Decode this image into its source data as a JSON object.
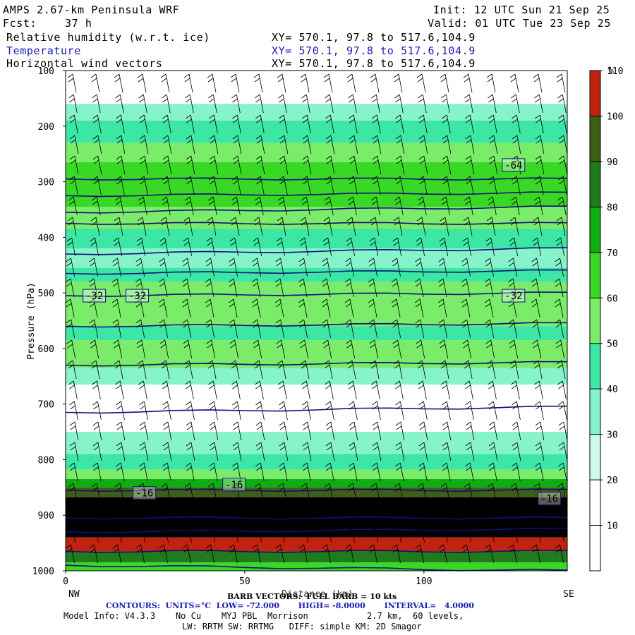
{
  "header": {
    "title": "AMPS 2.67-km Peninsula WRF",
    "init": "Init: 12 UTC Sun 21 Sep 25",
    "fcst_label": "Fcst:",
    "fcst_value": "37 h",
    "valid": "Valid: 01 UTC Tue 23 Sep 25",
    "fields": [
      {
        "name": "Relative humidity (w.r.t. ice)",
        "xy": "XY= 570.1, 97.8 to 517.6,104.9"
      },
      {
        "name": "Temperature",
        "xy": "XY= 570.1, 97.8 to 517.6,104.9"
      },
      {
        "name": "Horizontal wind vectors",
        "xy": "XY= 570.1, 97.8 to 517.6,104.9"
      }
    ]
  },
  "colors": {
    "rh_bands": [
      "#ffffff",
      "#ffffff",
      "#ccfce8",
      "#86f3cb",
      "#3ce6a4",
      "#7beb6a",
      "#38d825",
      "#0eae13",
      "#1f7b1c",
      "#3e5e17",
      "#c0230f"
    ],
    "temp_contour": "#101080",
    "barb": "#000000",
    "header_blue": "#1b1bb3"
  },
  "chart_data": {
    "type": "heatmap",
    "ylabel": "Pressure (hPa)",
    "xlabel": "Distance (km)",
    "x_ticks": [
      0,
      50,
      100
    ],
    "x_range": [
      0,
      140
    ],
    "y_ticks": [
      100,
      200,
      300,
      400,
      500,
      600,
      700,
      800,
      900,
      1000
    ],
    "y_range": [
      100,
      1000
    ],
    "left_end": "NW",
    "right_end": "SE",
    "colorbar": {
      "unit": "%",
      "levels": [
        10,
        20,
        30,
        40,
        50,
        60,
        70,
        80,
        90,
        100,
        110
      ]
    },
    "rh_layers": [
      {
        "p_top": 100,
        "p_bot": 160,
        "rh_pct": 0
      },
      {
        "p_top": 160,
        "p_bot": 190,
        "rh_pct": 35
      },
      {
        "p_top": 190,
        "p_bot": 230,
        "rh_pct": 45
      },
      {
        "p_top": 230,
        "p_bot": 265,
        "rh_pct": 55
      },
      {
        "p_top": 265,
        "p_bot": 345,
        "rh_pct": 65
      },
      {
        "p_top": 345,
        "p_bot": 385,
        "rh_pct": 55
      },
      {
        "p_top": 385,
        "p_bot": 420,
        "rh_pct": 45
      },
      {
        "p_top": 420,
        "p_bot": 455,
        "rh_pct": 35
      },
      {
        "p_top": 455,
        "p_bot": 480,
        "rh_pct": 45
      },
      {
        "p_top": 480,
        "p_bot": 560,
        "rh_pct": 55
      },
      {
        "p_top": 560,
        "p_bot": 585,
        "rh_pct": 45
      },
      {
        "p_top": 585,
        "p_bot": 635,
        "rh_pct": 55
      },
      {
        "p_top": 635,
        "p_bot": 665,
        "rh_pct": 35
      },
      {
        "p_top": 665,
        "p_bot": 750,
        "rh_pct": 0
      },
      {
        "p_top": 750,
        "p_bot": 790,
        "rh_pct": 35
      },
      {
        "p_top": 790,
        "p_bot": 818,
        "rh_pct": 45
      },
      {
        "p_top": 818,
        "p_bot": 835,
        "rh_pct": 55
      },
      {
        "p_top": 835,
        "p_bot": 850,
        "rh_pct": 75
      },
      {
        "p_top": 850,
        "p_bot": 868,
        "rh_pct": 95
      },
      {
        "p_top": 868,
        "p_bot": 940,
        "rh_pct": 110
      },
      {
        "p_top": 940,
        "p_bot": 965,
        "rh_pct": 105
      },
      {
        "p_top": 965,
        "p_bot": 985,
        "rh_pct": 85
      },
      {
        "p_top": 985,
        "p_bot": 1000,
        "rh_pct": 65
      }
    ],
    "temperature_contours": [
      {
        "p_left": 295,
        "p_right": 295
      },
      {
        "p_left": 325,
        "p_right": 320
      },
      {
        "p_left": 355,
        "p_right": 345
      },
      {
        "p_left": 375,
        "p_right": 375
      },
      {
        "p_left": 430,
        "p_right": 420
      },
      {
        "p_left": 465,
        "p_right": 460
      },
      {
        "p_left": 505,
        "p_right": 500
      },
      {
        "p_left": 560,
        "p_right": 555
      },
      {
        "p_left": 630,
        "p_right": 625
      },
      {
        "p_left": 715,
        "p_right": 705
      },
      {
        "p_left": 855,
        "p_right": 855
      },
      {
        "p_left": 905,
        "p_right": 905
      },
      {
        "p_left": 930,
        "p_right": 925
      },
      {
        "p_left": 965,
        "p_right": 965
      },
      {
        "p_left": 990,
        "p_right": 1000
      }
    ],
    "contour_labels": [
      {
        "text": "-64",
        "x": 125,
        "p": 270
      },
      {
        "text": "-32",
        "x": 8,
        "p": 505
      },
      {
        "text": "-32",
        "x": 20,
        "p": 505
      },
      {
        "text": "-32",
        "x": 125,
        "p": 505
      },
      {
        "text": "-16",
        "x": 22,
        "p": 860
      },
      {
        "text": "-16",
        "x": 47,
        "p": 845
      },
      {
        "text": "-16",
        "x": 135,
        "p": 870
      }
    ]
  },
  "footer": {
    "barb_note": "BARB VECTORS:  FULL BARB = 10 kts",
    "contours": "CONTOURS:  UNITS=°C  LOW= -72.000       HIGH= -8.0000       INTERVAL=   4.0000",
    "model_info": "Model Info: V4.3.3    No Cu    MYJ PBL  Morrison",
    "resolution": "2.7 km,  60 levels,",
    "physics": "LW: RRTM SW: RRTMG   DIFF: simple KM: 2D Smagor"
  }
}
